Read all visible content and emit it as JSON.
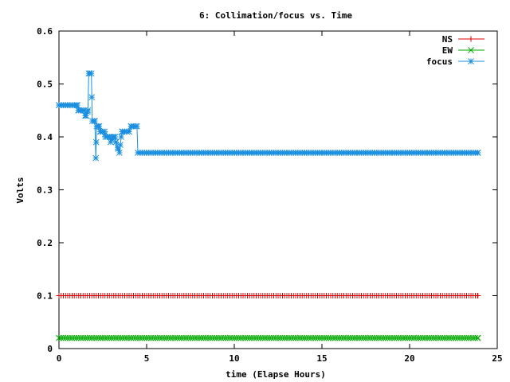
{
  "chart_data": {
    "type": "line",
    "title": "6: Collimation/focus vs. Time",
    "xlabel": "time (Elapse Hours)",
    "ylabel": "Volts",
    "xlim": [
      0,
      25
    ],
    "ylim": [
      0,
      0.6
    ],
    "xticks": [
      "0",
      "5",
      "10",
      "15",
      "20",
      "25"
    ],
    "yticks": [
      "0",
      "0.1",
      "0.2",
      "0.3",
      "0.4",
      "0.5",
      "0.6"
    ],
    "grid": false,
    "legend": "top-right",
    "x_end": 23.9,
    "series": [
      {
        "name": "NS",
        "color": "#dd0000",
        "marker": "plus",
        "points": [
          [
            0,
            0.1
          ],
          [
            23.9,
            0.1
          ]
        ]
      },
      {
        "name": "EW",
        "color": "#00aa00",
        "marker": "x",
        "points": [
          [
            0,
            0.02
          ],
          [
            23.9,
            0.02
          ]
        ]
      },
      {
        "name": "focus",
        "color": "#1a8fe0",
        "marker": "star",
        "points": [
          [
            0,
            0.46
          ],
          [
            1.05,
            0.46
          ],
          [
            1.1,
            0.45
          ],
          [
            1.45,
            0.45
          ],
          [
            1.5,
            0.44
          ],
          [
            1.55,
            0.44
          ],
          [
            1.65,
            0.45
          ],
          [
            1.7,
            0.52
          ],
          [
            1.85,
            0.52
          ],
          [
            1.9,
            0.43
          ],
          [
            2.05,
            0.43
          ],
          [
            2.1,
            0.36
          ],
          [
            2.15,
            0.42
          ],
          [
            2.3,
            0.42
          ],
          [
            2.35,
            0.41
          ],
          [
            2.6,
            0.41
          ],
          [
            2.65,
            0.4
          ],
          [
            2.9,
            0.4
          ],
          [
            2.95,
            0.39
          ],
          [
            3.05,
            0.4
          ],
          [
            3.2,
            0.4
          ],
          [
            3.25,
            0.39
          ],
          [
            3.35,
            0.38
          ],
          [
            3.45,
            0.37
          ],
          [
            3.55,
            0.4
          ],
          [
            3.6,
            0.41
          ],
          [
            4.0,
            0.41
          ],
          [
            4.1,
            0.42
          ],
          [
            4.45,
            0.42
          ],
          [
            4.5,
            0.37
          ],
          [
            23.9,
            0.37
          ]
        ]
      }
    ]
  }
}
